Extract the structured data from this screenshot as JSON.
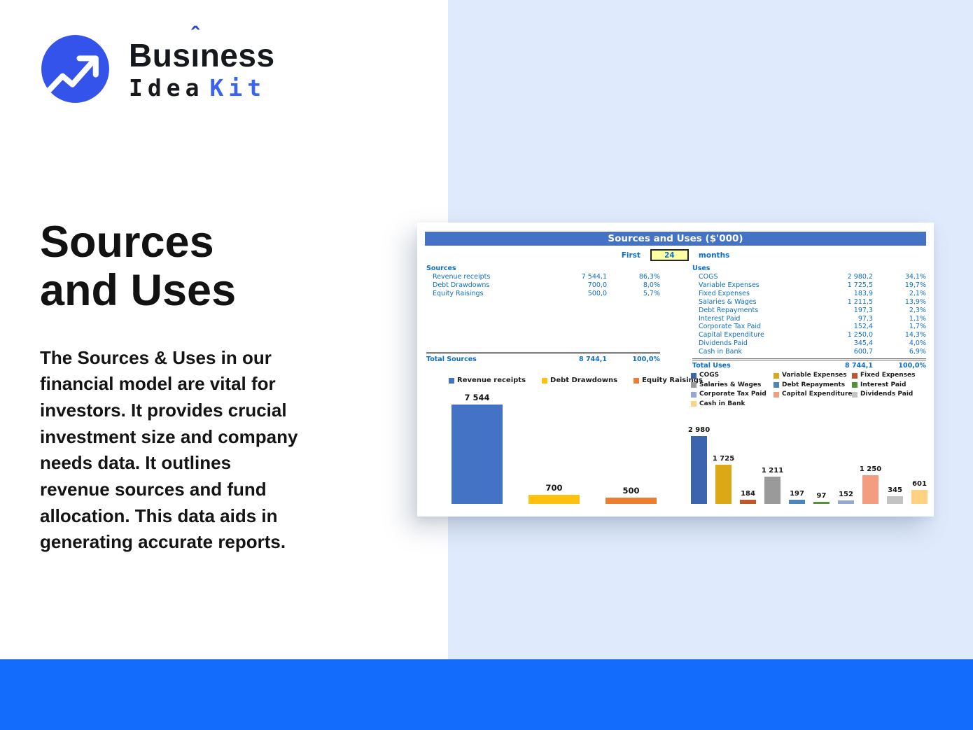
{
  "page": {
    "bg_light_blue": "#dfeafc",
    "bottom_bar_color": "#146cfc"
  },
  "logo": {
    "word1_pre": "Bus",
    "word1_i": "ı",
    "word1_hat": "ˆ",
    "word1_post": "ness",
    "word2": "Idea",
    "word3": "Kit",
    "circle_color": "#3353eb",
    "kit_color": "#3b63f2"
  },
  "hero": {
    "title": "Sources\nand Uses",
    "body": "The Sources & Uses in our\nfinancial model are vital for\ninvestors. It provides crucial\ninvestment size and company\nneeds data. It outlines\nrevenue sources and fund\nallocation. This data aids in\ngenerating accurate reports."
  },
  "sheet": {
    "title": "Sources and Uses ($'000)",
    "period_prefix": "First",
    "period_value": "24",
    "period_suffix": "months",
    "sources": {
      "header": "Sources",
      "rows": [
        {
          "label": "Revenue receipts",
          "value": "7 544,1",
          "pct": "86,3%"
        },
        {
          "label": "Debt Drawdowns",
          "value": "700,0",
          "pct": "8,0%"
        },
        {
          "label": "Equity Raisings",
          "value": "500,0",
          "pct": "5,7%"
        }
      ],
      "total": {
        "label": "Total Sources",
        "value": "8 744,1",
        "pct": "100,0%"
      }
    },
    "uses": {
      "header": "Uses",
      "rows": [
        {
          "label": "COGS",
          "value": "2 980,2",
          "pct": "34,1%"
        },
        {
          "label": "Variable Expenses",
          "value": "1 725,5",
          "pct": "19,7%"
        },
        {
          "label": "Fixed Expenses",
          "value": "183,9",
          "pct": "2,1%"
        },
        {
          "label": "Salaries & Wages",
          "value": "1 211,5",
          "pct": "13,9%"
        },
        {
          "label": "Debt Repayments",
          "value": "197,3",
          "pct": "2,3%"
        },
        {
          "label": "Interest Paid",
          "value": "97,3",
          "pct": "1,1%"
        },
        {
          "label": "Corporate Tax Paid",
          "value": "152,4",
          "pct": "1,7%"
        },
        {
          "label": "Capital Expenditure",
          "value": "1 250,0",
          "pct": "14,3%"
        },
        {
          "label": "Dividends Paid",
          "value": "345,4",
          "pct": "4,0%"
        },
        {
          "label": "Cash in Bank",
          "value": "600,7",
          "pct": "6,9%"
        }
      ],
      "total": {
        "label": "Total Uses",
        "value": "8 744,1",
        "pct": "100,0%"
      }
    }
  },
  "chart_data": [
    {
      "type": "bar",
      "title": "Sources",
      "categories": [
        "Revenue receipts",
        "Debt Drawdowns",
        "Equity Raisings"
      ],
      "values": [
        7544,
        700,
        500
      ],
      "labels": [
        "7 544",
        "700",
        "500"
      ],
      "colors": [
        "#4472c4",
        "#ffc010",
        "#ed7d31"
      ],
      "legend_position": "top",
      "ylim": [
        0,
        7544
      ],
      "grid": false
    },
    {
      "type": "bar",
      "title": "Uses",
      "categories": [
        "COGS",
        "Variable Expenses",
        "Fixed Expenses",
        "Salaries & Wages",
        "Debt Repayments",
        "Interest Paid",
        "Corporate Tax Paid",
        "Capital Expenditure",
        "Dividends Paid",
        "Cash in Bank"
      ],
      "values": [
        2980,
        1725,
        184,
        1211,
        197,
        97,
        152,
        1250,
        345,
        601
      ],
      "labels": [
        "2 980",
        "1 725",
        "184",
        "1 211",
        "197",
        "97",
        "152",
        "1 250",
        "345",
        "601"
      ],
      "colors": [
        "#3d64ae",
        "#dca815",
        "#c0572b",
        "#9a9a9a",
        "#4e86bc",
        "#55923b",
        "#93a7d8",
        "#f29c80",
        "#c3c3c3",
        "#ffd182"
      ],
      "legend_position": "top",
      "ylim": [
        0,
        2980
      ],
      "grid": false
    }
  ]
}
